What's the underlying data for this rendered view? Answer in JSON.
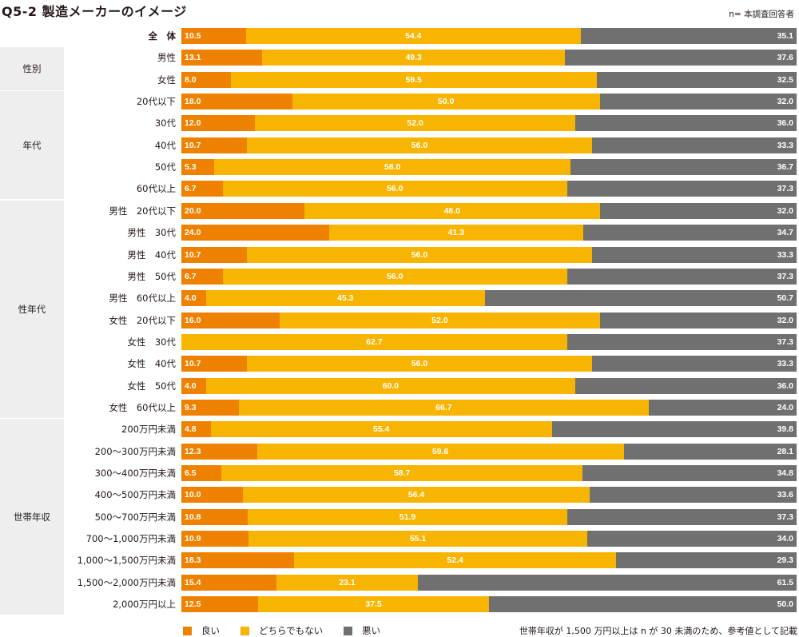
{
  "title": "Q5-2  製造メーカーのイメージ",
  "sample_note": "n= 本調査回答者",
  "footnote": "世帯年収が 1,500 万円以上は n が 30 未満のため、参考値として記載",
  "colors": {
    "good": "#ee8200",
    "neutral": "#f7b400",
    "bad": "#717071",
    "group_bg": "#eeeeee"
  },
  "groups": [
    {
      "label": "性別",
      "first_row": 1,
      "last_row": 2
    },
    {
      "label": "年代",
      "first_row": 3,
      "last_row": 7
    },
    {
      "label": "性年代",
      "first_row": 8,
      "last_row": 17
    },
    {
      "label": "世帯年収",
      "first_row": 18,
      "last_row": 26
    }
  ],
  "chart_data": {
    "type": "bar",
    "orientation": "horizontal",
    "stacked": true,
    "title": "Q5-2  製造メーカーのイメージ",
    "xlabel": "",
    "ylabel": "",
    "xlim": [
      0,
      100
    ],
    "grid": false,
    "legend_position": "bottom-left",
    "legend": [
      "良い",
      "どちらでもない",
      "悪い"
    ],
    "categories": [
      "全　体",
      "男性",
      "女性",
      "20代以下",
      "30代",
      "40代",
      "50代",
      "60代以上",
      "男性　20代以下",
      "男性　30代",
      "男性　40代",
      "男性　50代",
      "男性　60代以上",
      "女性　20代以下",
      "女性　30代",
      "女性　40代",
      "女性　50代",
      "女性　60代以上",
      "200万円未満",
      "200〜300万円未満",
      "300〜400万円未満",
      "400〜500万円未満",
      "500〜700万円未満",
      "700〜1,000万円未満",
      "1,000〜1,500万円未満",
      "1,500〜2,000万円未満",
      "2,000万円以上"
    ],
    "series": [
      {
        "name": "良い",
        "values": [
          10.5,
          13.1,
          8.0,
          18.0,
          12.0,
          10.7,
          5.3,
          6.7,
          20.0,
          24.0,
          10.7,
          6.7,
          4.0,
          16.0,
          0,
          10.7,
          4.0,
          9.3,
          4.8,
          12.3,
          6.5,
          10.0,
          10.8,
          10.9,
          18.3,
          15.4,
          12.5
        ]
      },
      {
        "name": "どちらでもない",
        "values": [
          54.4,
          49.3,
          59.5,
          50.0,
          52.0,
          56.0,
          58.0,
          56.0,
          48.0,
          41.3,
          56.0,
          56.0,
          45.3,
          52.0,
          62.7,
          56.0,
          60.0,
          66.7,
          55.4,
          59.6,
          58.7,
          56.4,
          51.9,
          55.1,
          52.4,
          23.1,
          37.5
        ]
      },
      {
        "name": "悪い",
        "values": [
          35.1,
          37.6,
          32.5,
          32.0,
          36.0,
          33.3,
          36.7,
          37.3,
          32.0,
          34.7,
          33.3,
          37.3,
          50.7,
          32.0,
          37.3,
          33.3,
          36.0,
          24.0,
          39.8,
          28.1,
          34.8,
          33.6,
          37.3,
          34.0,
          29.3,
          61.5,
          50.0
        ]
      }
    ]
  },
  "value_labels": {
    "good": [
      "10.5",
      "13.1",
      "8.0",
      "18.0",
      "12.0",
      "10.7",
      "5.3",
      "6.7",
      "20.0",
      "24.0",
      "10.7",
      "6.7",
      "4.0",
      "16.0",
      "",
      "10.7",
      "4.0",
      "9.3",
      "4.8",
      "12.3",
      "6.5",
      "10.0",
      "10.8",
      "10.9",
      "18.3",
      "15.4",
      "12.5"
    ],
    "neutral": [
      "54.4",
      "49.3",
      "59.5",
      "50.0",
      "52.0",
      "56.0",
      "58.0",
      "56.0",
      "48.0",
      "41.3",
      "56.0",
      "56.0",
      "45.3",
      "52.0",
      "62.7",
      "56.0",
      "60.0",
      "66.7",
      "55.4",
      "59.6",
      "58.7",
      "56.4",
      "51.9",
      "55.1",
      "52.4",
      "23.1",
      "37.5"
    ],
    "bad": [
      "35.1",
      "37.6",
      "32.5",
      "32.0",
      "36.0",
      "33.3",
      "36.7",
      "37.3",
      "32.0",
      "34.7",
      "33.3",
      "37.3",
      "50.7",
      "32.0",
      "37.3",
      "33.3",
      "36.0",
      "24.0",
      "39.8",
      "28.1",
      "34.8",
      "33.6",
      "37.3",
      "34.0",
      "29.3",
      "61.5",
      "50.0"
    ]
  }
}
